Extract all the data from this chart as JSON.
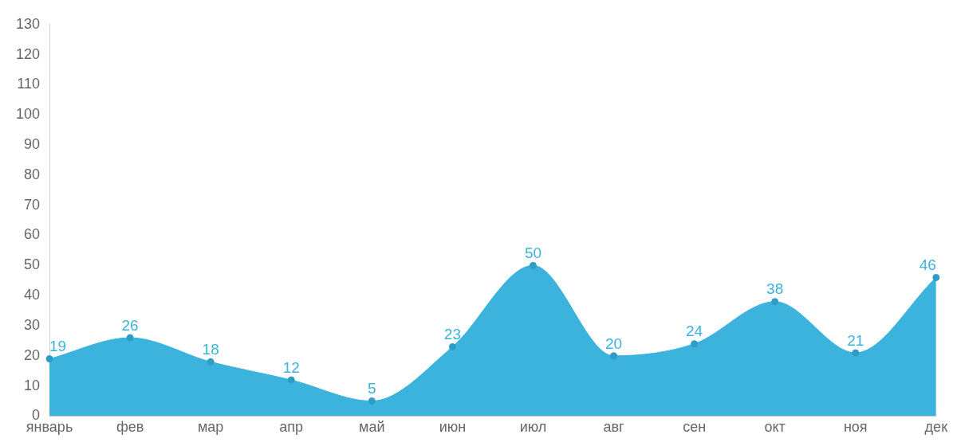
{
  "chart_data": {
    "type": "area",
    "categories": [
      "январь",
      "фев",
      "мар",
      "апр",
      "май",
      "июн",
      "июл",
      "авг",
      "сен",
      "окт",
      "ноя",
      "дек"
    ],
    "values": [
      19,
      26,
      18,
      12,
      5,
      23,
      50,
      20,
      24,
      38,
      21,
      46
    ],
    "color": "#3bb3dc",
    "ylim": [
      0,
      130
    ],
    "yticks": [
      0,
      10,
      20,
      30,
      40,
      50,
      60,
      70,
      80,
      90,
      100,
      110,
      120,
      130
    ],
    "data_labels": true,
    "marker": "circle"
  }
}
